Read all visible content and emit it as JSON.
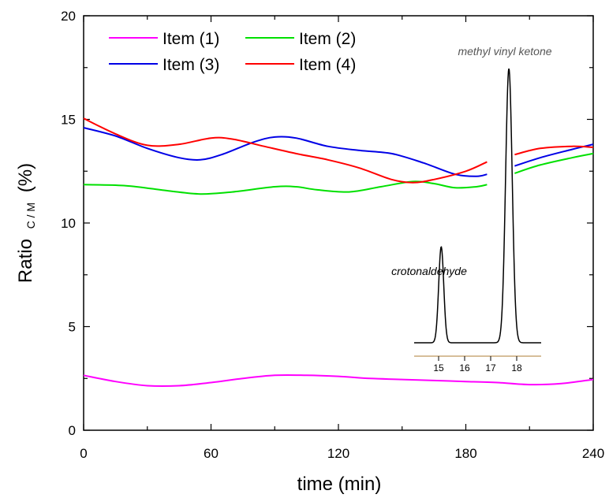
{
  "chart_data": {
    "type": "line",
    "xlabel": "time (min)",
    "ylabel": "Ratio",
    "ylabel_subscript": "C / M",
    "ylabel_unit": "(%)",
    "xlim": [
      0,
      240
    ],
    "ylim": [
      0,
      20
    ],
    "x_ticks": [
      "0",
      "60",
      "120",
      "180",
      "240"
    ],
    "y_ticks": [
      "0",
      "5",
      "10",
      "15",
      "20"
    ],
    "grid": false,
    "legend_position": "top-left",
    "series": [
      {
        "name": "Item (1)",
        "color": "#ff00ff",
        "segments": [
          [
            [
              0,
              2.65
            ],
            [
              15,
              2.35
            ],
            [
              30,
              2.15
            ],
            [
              45,
              2.15
            ],
            [
              60,
              2.3
            ],
            [
              75,
              2.5
            ],
            [
              90,
              2.65
            ],
            [
              105,
              2.65
            ],
            [
              120,
              2.6
            ],
            [
              135,
              2.5
            ],
            [
              150,
              2.45
            ],
            [
              165,
              2.4
            ],
            [
              180,
              2.35
            ],
            [
              195,
              2.3
            ],
            [
              210,
              2.2
            ],
            [
              225,
              2.25
            ],
            [
              240,
              2.45
            ]
          ]
        ]
      },
      {
        "name": "Item (2)",
        "color": "#00e000",
        "segments": [
          [
            [
              0,
              11.85
            ],
            [
              20,
              11.8
            ],
            [
              40,
              11.55
            ],
            [
              55,
              11.4
            ],
            [
              70,
              11.5
            ],
            [
              90,
              11.75
            ],
            [
              100,
              11.75
            ],
            [
              110,
              11.6
            ],
            [
              125,
              11.5
            ],
            [
              140,
              11.75
            ],
            [
              155,
              12.0
            ],
            [
              165,
              11.9
            ],
            [
              175,
              11.7
            ],
            [
              185,
              11.75
            ],
            [
              190,
              11.85
            ]
          ],
          [
            [
              203,
              12.4
            ],
            [
              215,
              12.8
            ],
            [
              230,
              13.15
            ],
            [
              240,
              13.35
            ]
          ]
        ]
      },
      {
        "name": "Item (3)",
        "color": "#0000e6",
        "segments": [
          [
            [
              0,
              14.6
            ],
            [
              15,
              14.2
            ],
            [
              30,
              13.6
            ],
            [
              45,
              13.15
            ],
            [
              55,
              13.05
            ],
            [
              65,
              13.3
            ],
            [
              80,
              13.9
            ],
            [
              90,
              14.15
            ],
            [
              100,
              14.1
            ],
            [
              115,
              13.7
            ],
            [
              130,
              13.5
            ],
            [
              145,
              13.35
            ],
            [
              160,
              12.9
            ],
            [
              175,
              12.35
            ],
            [
              185,
              12.25
            ],
            [
              190,
              12.35
            ]
          ],
          [
            [
              203,
              12.75
            ],
            [
              215,
              13.15
            ],
            [
              230,
              13.55
            ],
            [
              240,
              13.8
            ]
          ]
        ]
      },
      {
        "name": "Item (4)",
        "color": "#ff0000",
        "segments": [
          [
            [
              0,
              15.05
            ],
            [
              15,
              14.3
            ],
            [
              30,
              13.75
            ],
            [
              45,
              13.8
            ],
            [
              60,
              14.1
            ],
            [
              70,
              14.05
            ],
            [
              85,
              13.7
            ],
            [
              100,
              13.35
            ],
            [
              115,
              13.05
            ],
            [
              130,
              12.65
            ],
            [
              145,
              12.1
            ],
            [
              155,
              11.95
            ],
            [
              165,
              12.1
            ],
            [
              180,
              12.5
            ],
            [
              190,
              12.95
            ]
          ],
          [
            [
              203,
              13.3
            ],
            [
              215,
              13.6
            ],
            [
              230,
              13.7
            ],
            [
              240,
              13.65
            ]
          ]
        ]
      }
    ],
    "inset": {
      "type": "chromatogram",
      "x_ticks": [
        "15",
        "16",
        "17",
        "18"
      ],
      "peaks": [
        {
          "label": "crotonaldehyde",
          "label_color": "#000000",
          "retention": 15.1,
          "relative_height": 0.35
        },
        {
          "label": "methyl vinyl ketone",
          "label_color": "#555555",
          "retention": 17.7,
          "relative_height": 1.0
        }
      ]
    }
  }
}
